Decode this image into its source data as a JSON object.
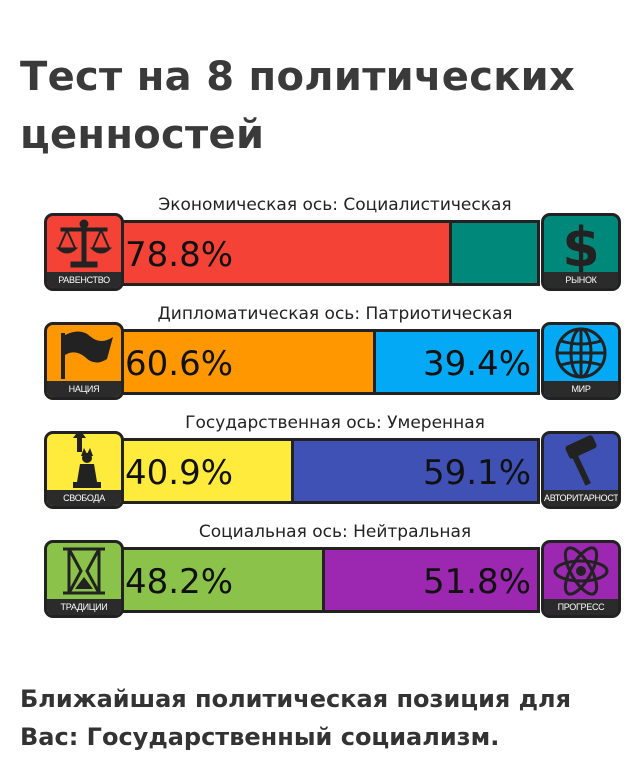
{
  "page_title": "Тест на 8 политических ценностей",
  "result_text": "Ближайшая политическая позиция для Вас: Государственный социализм.",
  "chart_data": {
    "type": "bar",
    "stacked": true,
    "orientation": "horizontal",
    "axes": [
      {
        "label": "Экономическая ось: Социалистическая",
        "left": {
          "name": "РАВЕНСТВО",
          "value": 78.8,
          "display": "78.8%",
          "color": "#f44336",
          "icon": "scales-icon",
          "icon_color": "#f44336"
        },
        "right": {
          "name": "РЫНОК",
          "value": 21.2,
          "display": "",
          "color": "#00897b",
          "icon": "dollar-icon",
          "icon_color": "#00897b"
        }
      },
      {
        "label": "Дипломатическая ось: Патриотическая",
        "left": {
          "name": "НАЦИЯ",
          "value": 60.6,
          "display": "60.6%",
          "color": "#ff9800",
          "icon": "flag-icon",
          "icon_color": "#ff9800"
        },
        "right": {
          "name": "МИР",
          "value": 39.4,
          "display": "39.4%",
          "color": "#03a9f4",
          "icon": "globe-icon",
          "icon_color": "#03a9f4"
        }
      },
      {
        "label": "Государственная ось: Умеренная",
        "left": {
          "name": "СВОБОДА",
          "value": 40.9,
          "display": "40.9%",
          "color": "#ffeb3b",
          "icon": "liberty-statue-icon",
          "icon_color": "#ffeb3b"
        },
        "right": {
          "name": "АВТОРИТАРНОСТЬ",
          "value": 59.1,
          "display": "59.1%",
          "color": "#3f51b5",
          "icon": "gavel-icon",
          "icon_color": "#3f51b5"
        }
      },
      {
        "label": "Социальная ось: Нейтральная",
        "left": {
          "name": "ТРАДИЦИИ",
          "value": 48.2,
          "display": "48.2%",
          "color": "#8bc34a",
          "icon": "hourglass-icon",
          "icon_color": "#8bc34a"
        },
        "right": {
          "name": "ПРОГРЕСС",
          "value": 51.8,
          "display": "51.8%",
          "color": "#9c27b0",
          "icon": "atom-icon",
          "icon_color": "#9c27b0"
        }
      }
    ],
    "xlim": [
      0,
      100
    ]
  }
}
